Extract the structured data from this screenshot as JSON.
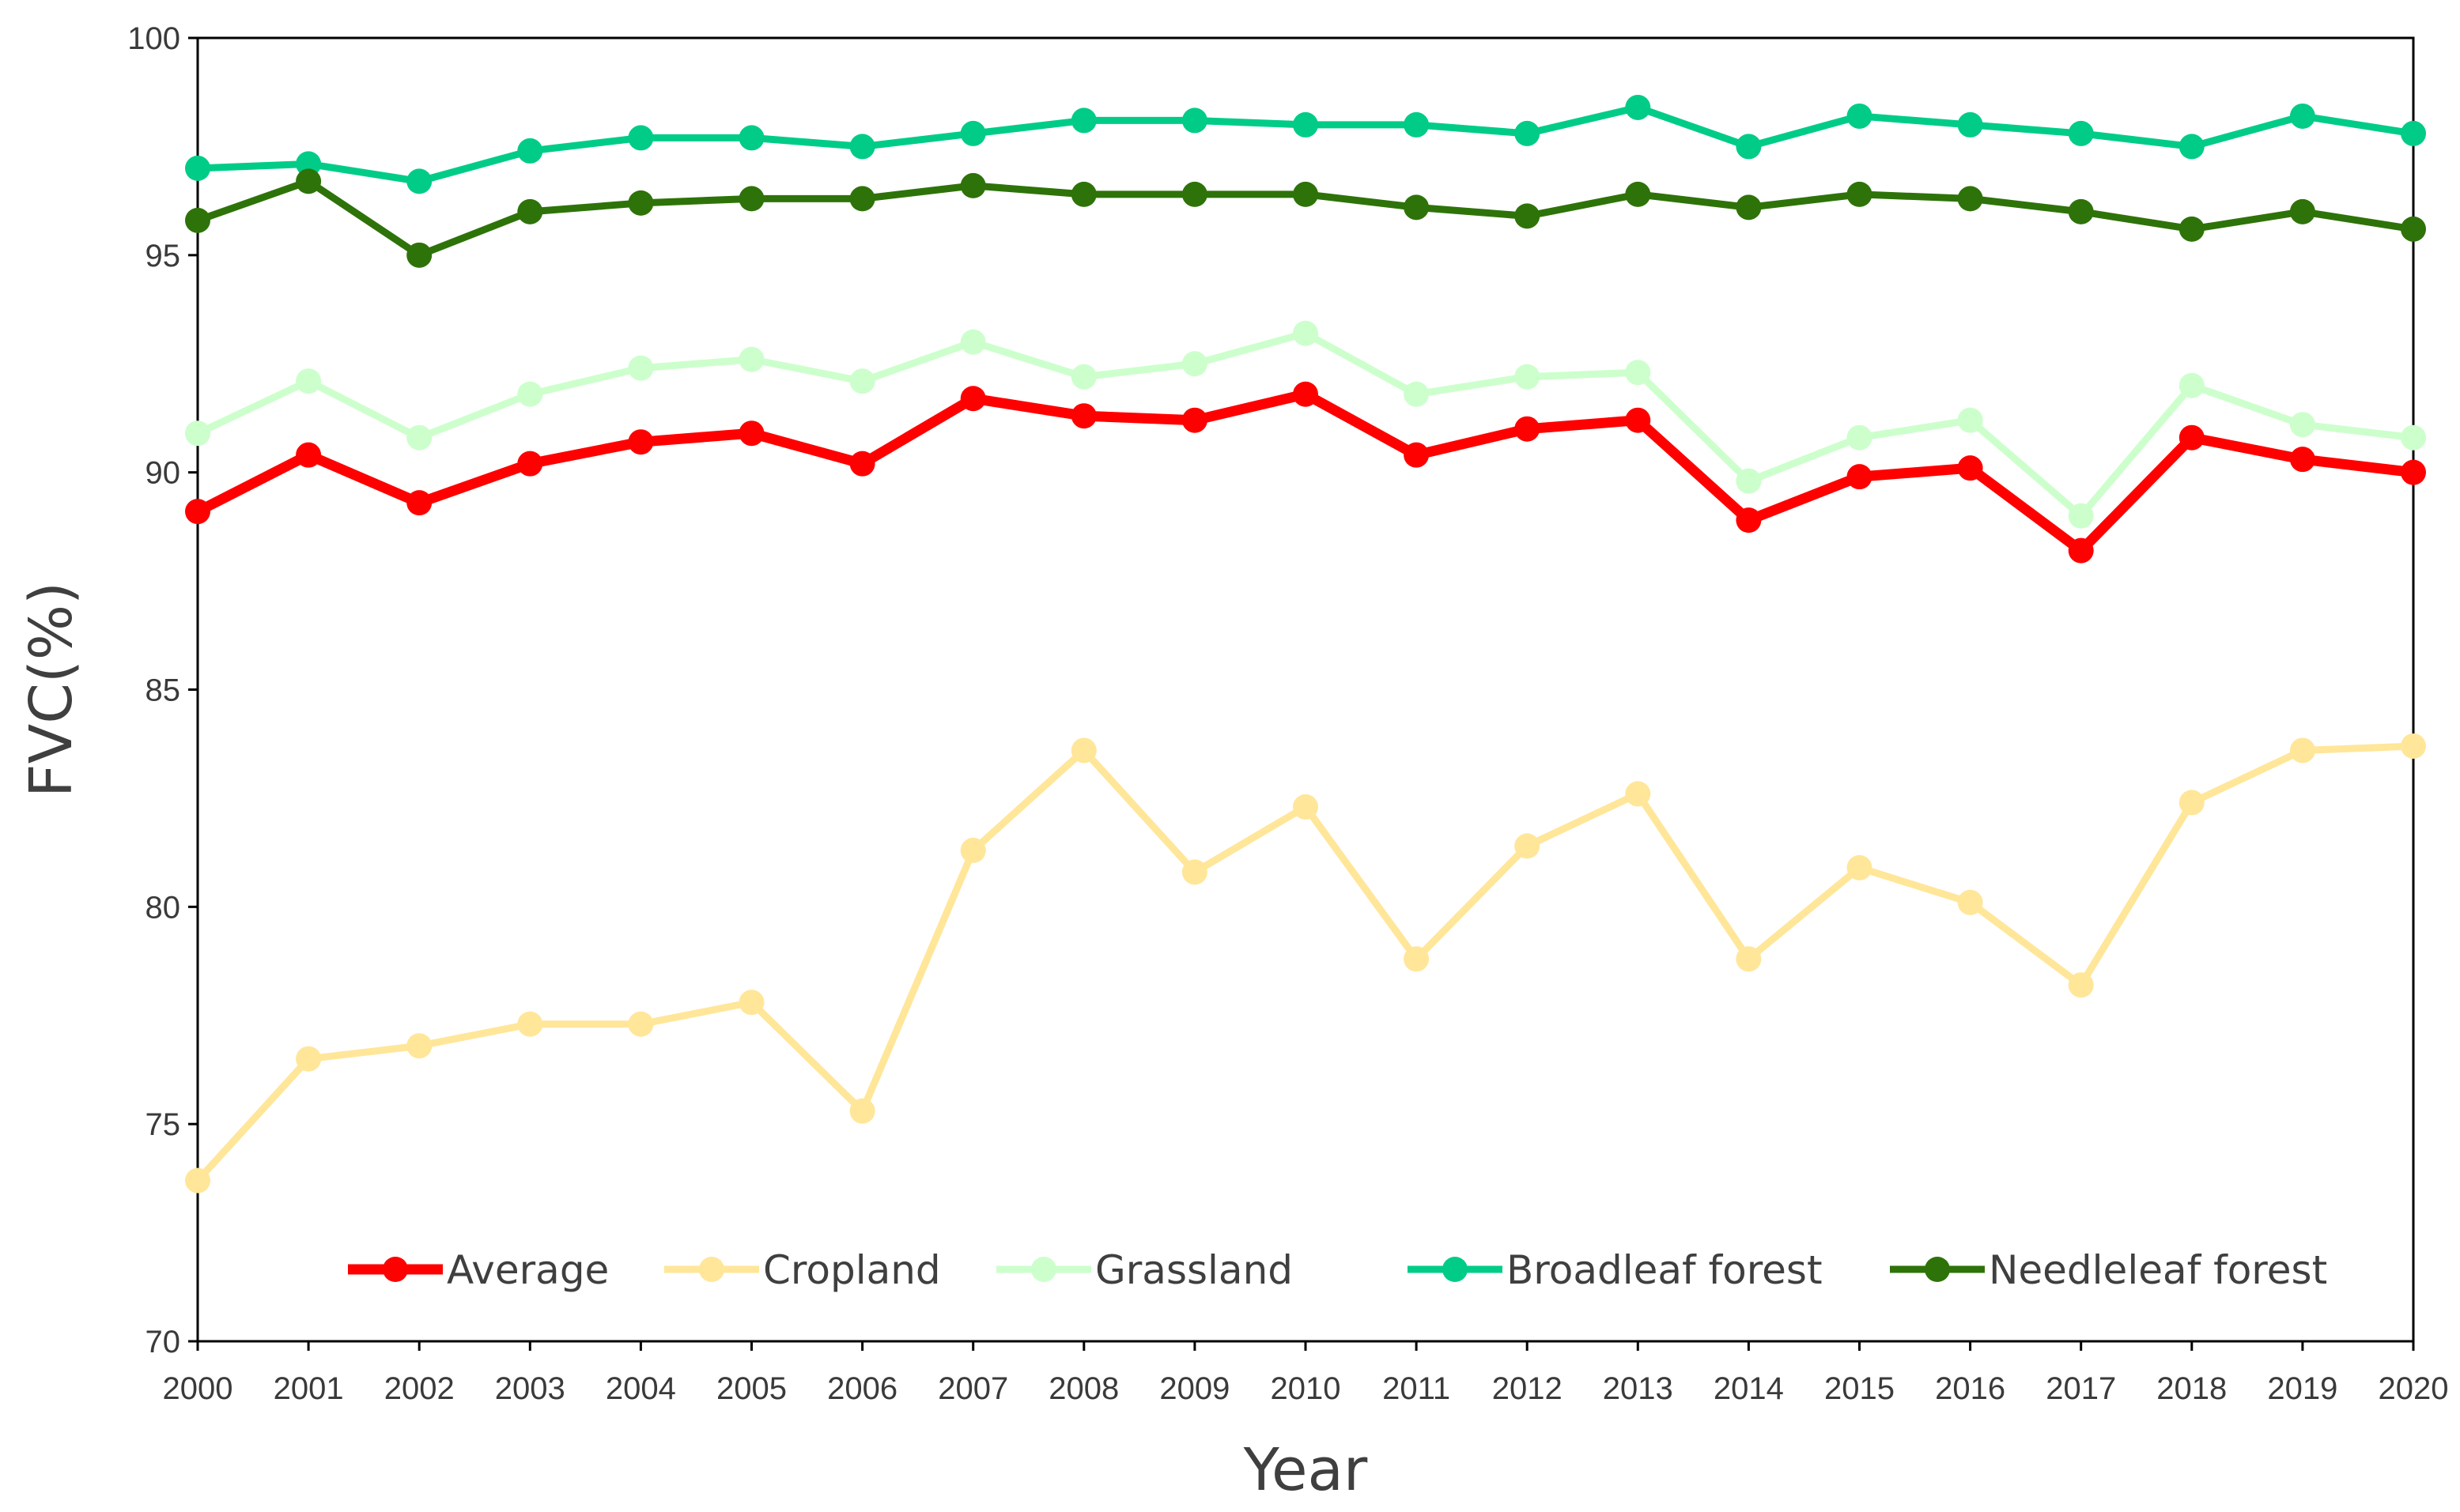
{
  "chart_data": {
    "type": "line",
    "xlabel": "Year",
    "ylabel": "FVC(%)",
    "ylim": [
      70,
      100
    ],
    "yticks": [
      "70",
      "75",
      "80",
      "85",
      "90",
      "95",
      "100"
    ],
    "categories": [
      "2000",
      "2001",
      "2002",
      "2003",
      "2004",
      "2005",
      "2006",
      "2007",
      "2008",
      "2009",
      "2010",
      "2011",
      "2012",
      "2013",
      "2014",
      "2015",
      "2016",
      "2017",
      "2018",
      "2019",
      "2020"
    ],
    "grid": false,
    "legend_position": "bottom",
    "series": [
      {
        "name": "Average",
        "color": "#ff0000",
        "values": [
          89.1,
          90.4,
          89.3,
          90.2,
          90.7,
          90.9,
          90.2,
          91.7,
          91.3,
          91.2,
          91.8,
          90.4,
          91.0,
          91.2,
          88.9,
          89.9,
          90.1,
          88.2,
          90.8,
          90.3,
          90.0
        ]
      },
      {
        "name": "Cropland",
        "color": "#ffe699",
        "values": [
          73.7,
          76.5,
          76.8,
          77.3,
          77.3,
          77.8,
          75.3,
          81.3,
          83.6,
          80.8,
          82.3,
          78.8,
          81.4,
          82.6,
          78.8,
          80.9,
          80.1,
          78.2,
          82.4,
          83.6,
          83.7
        ]
      },
      {
        "name": "Grassland",
        "color": "#ccffcc",
        "values": [
          90.9,
          92.1,
          90.8,
          91.8,
          92.4,
          92.6,
          92.1,
          93.0,
          92.2,
          92.5,
          93.2,
          91.8,
          92.2,
          92.3,
          89.8,
          90.8,
          91.2,
          89.0,
          92.0,
          91.1,
          90.8
        ]
      },
      {
        "name": "Broadleaf forest",
        "color": "#00cc88",
        "values": [
          97.0,
          97.1,
          96.7,
          97.4,
          97.7,
          97.7,
          97.5,
          97.8,
          98.1,
          98.1,
          98.0,
          98.0,
          97.8,
          98.4,
          97.5,
          98.2,
          98.0,
          97.8,
          97.5,
          98.2,
          97.8
        ]
      },
      {
        "name": "Needleleaf forest",
        "color": "#2e7309",
        "values": [
          95.8,
          96.7,
          95.0,
          96.0,
          96.2,
          96.3,
          96.3,
          96.6,
          96.4,
          96.4,
          96.4,
          96.1,
          95.9,
          96.4,
          96.1,
          96.4,
          96.3,
          96.0,
          95.6,
          96.0,
          95.6
        ]
      }
    ]
  }
}
